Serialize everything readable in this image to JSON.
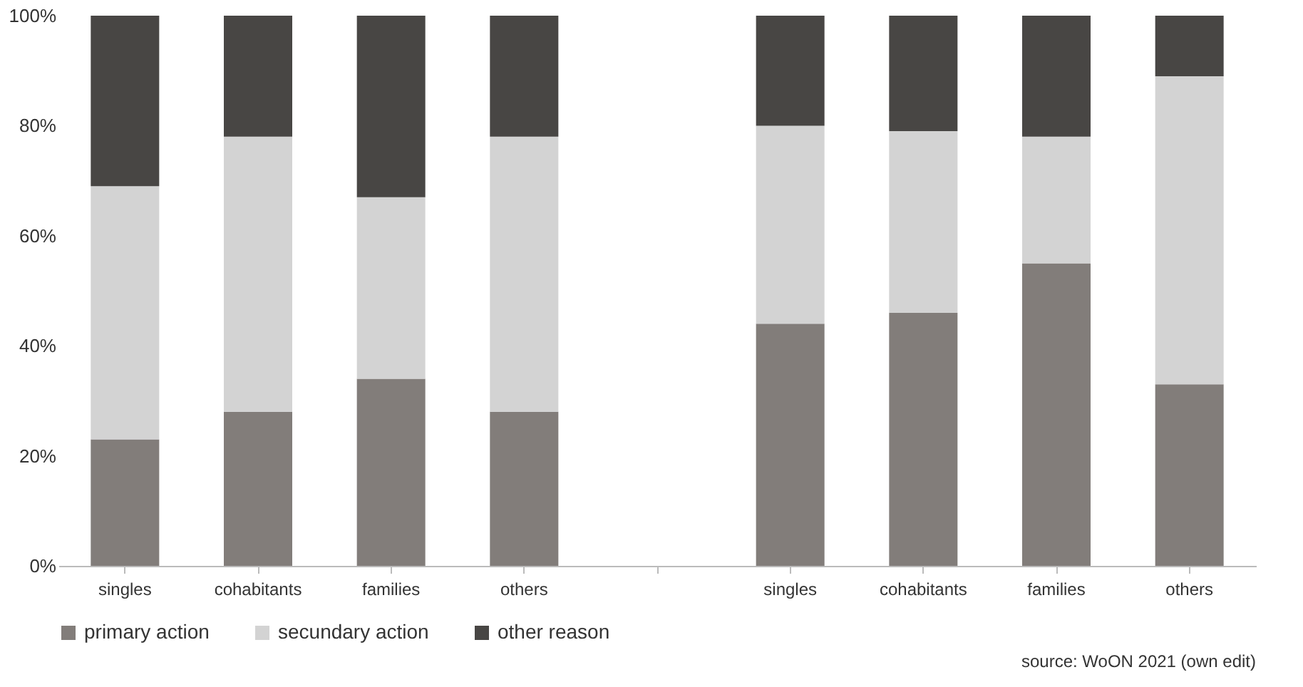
{
  "chart_data": {
    "type": "bar",
    "stacked": true,
    "categories": [
      "singles",
      "cohabitants",
      "families",
      "others",
      null,
      "singles",
      "cohabitants",
      "families",
      "others"
    ],
    "series": [
      {
        "name": "primary action",
        "color": "#827d7a",
        "values": [
          23,
          28,
          34,
          28,
          null,
          44,
          46,
          55,
          33
        ]
      },
      {
        "name": "secundary action",
        "color": "#d3d3d3",
        "values": [
          46,
          50,
          33,
          50,
          null,
          36,
          33,
          23,
          56
        ]
      },
      {
        "name": "other reason",
        "color": "#484644",
        "values": [
          31,
          22,
          33,
          22,
          null,
          20,
          21,
          22,
          11
        ]
      }
    ],
    "ylim": [
      0,
      100
    ],
    "yticks": [
      {
        "value": 0,
        "label": "0%"
      },
      {
        "value": 20,
        "label": "20%"
      },
      {
        "value": 40,
        "label": "40%"
      },
      {
        "value": 60,
        "label": "60%"
      },
      {
        "value": 80,
        "label": "80%"
      },
      {
        "value": 100,
        "label": "100%"
      }
    ],
    "grid": false,
    "legend": "bottom",
    "annotations": [
      "source: WoON 2021 (own edit)"
    ]
  }
}
